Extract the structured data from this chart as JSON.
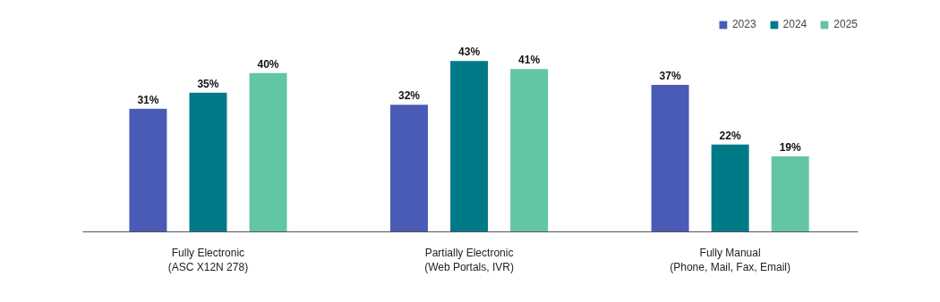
{
  "chart_data": {
    "type": "bar",
    "categories": [
      "Fully Electronic\n(ASC X12N 278)",
      "Partially Electronic\n(Web Portals, IVR)",
      "Fully Manual\n(Phone, Mail, Fax, Email)"
    ],
    "series": [
      {
        "name": "2023",
        "color": "#4a5bb5",
        "values": [
          31,
          32,
          37
        ],
        "value_labels": [
          "31%",
          "32%",
          "37%"
        ]
      },
      {
        "name": "2024",
        "color": "#007a87",
        "values": [
          35,
          43,
          22
        ],
        "value_labels": [
          "35%",
          "43%",
          "22%"
        ]
      },
      {
        "name": "2025",
        "color": "#62c6a4",
        "values": [
          40,
          41,
          19
        ],
        "value_labels": [
          "40%",
          "41%",
          "19%"
        ]
      }
    ],
    "legend": "top right"
  }
}
